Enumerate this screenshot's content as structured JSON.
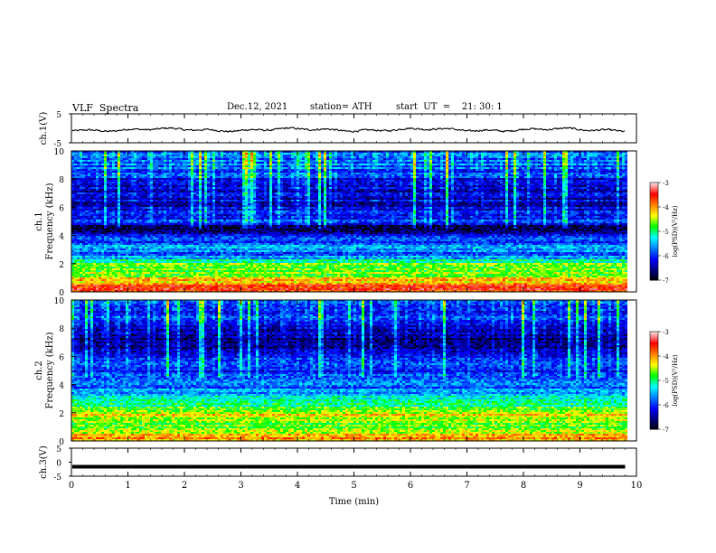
{
  "header": {
    "title": "VLF  Spectra",
    "date": "Dec.12, 2021",
    "station": "station= ATH",
    "start": "start  UT  =    21: 30: 1"
  },
  "chart_data": {
    "type": "heatmap",
    "xlabel": "Time  (min)",
    "xlim": [
      0,
      10
    ],
    "x_ticks": [
      0,
      1,
      2,
      3,
      4,
      5,
      6,
      7,
      8,
      9,
      10
    ],
    "data_end_min": 9.8,
    "panels": [
      {
        "type": "line",
        "ylabel": "ch.1(V)",
        "ylim": [
          -5,
          5
        ],
        "y_ticks": [
          5,
          -5
        ],
        "mean_value": -0.5,
        "description_values_range": [
          -1.0,
          0.2
        ]
      },
      {
        "type": "heatmap",
        "channel_label": "ch.1",
        "ylabel": "Frequency  (kHz)",
        "ylim": [
          0,
          10
        ],
        "y_ticks": [
          0,
          2,
          4,
          6,
          8,
          10
        ],
        "colorbar": {
          "label": "log(PSD)(V²/Hz)",
          "range": [
            -7,
            -3
          ],
          "ticks": [
            -3,
            -4,
            -5,
            -6,
            -7
          ],
          "colors": [
            "#000000",
            "#00007f",
            "#0000ff",
            "#0080ff",
            "#00ffff",
            "#00ff00",
            "#ffff00",
            "#ff8000",
            "#ff0000",
            "#ffd8d8"
          ]
        },
        "band_levels_by_freq_kHz": [
          {
            "f": 0.3,
            "level": -3.5
          },
          {
            "f": 0.8,
            "level": -4.2
          },
          {
            "f": 1.3,
            "level": -4.6
          },
          {
            "f": 2.0,
            "level": -4.8
          },
          {
            "f": 2.6,
            "level": -5.8
          },
          {
            "f": 3.2,
            "level": -5.6
          },
          {
            "f": 3.9,
            "level": -6.1
          },
          {
            "f": 4.5,
            "level": -6.8
          },
          {
            "f": 5.0,
            "level": -6.0
          },
          {
            "f": 6.0,
            "level": -6.3
          },
          {
            "f": 7.5,
            "level": -6.3
          },
          {
            "f": 9.0,
            "level": -5.8
          }
        ]
      },
      {
        "type": "heatmap",
        "channel_label": "ch.2",
        "ylabel": "Frequency  (kHz)",
        "ylim": [
          0,
          10
        ],
        "y_ticks": [
          0,
          2,
          4,
          6,
          8,
          10
        ],
        "colorbar": {
          "label": "log(PSD)(V²/Hz)",
          "range": [
            -7,
            -3
          ],
          "ticks": [
            -3,
            -4,
            -5,
            -6,
            -7
          ],
          "colors": [
            "#000000",
            "#00007f",
            "#0000ff",
            "#0080ff",
            "#00ffff",
            "#00ff00",
            "#ffff00",
            "#ff8000",
            "#ff0000",
            "#ffd8d8"
          ]
        },
        "band_levels_by_freq_kHz": [
          {
            "f": 0.3,
            "level": -4.0
          },
          {
            "f": 1.0,
            "level": -4.6
          },
          {
            "f": 1.9,
            "level": -4.3
          },
          {
            "f": 2.8,
            "level": -5.2
          },
          {
            "f": 3.5,
            "level": -5.6
          },
          {
            "f": 4.5,
            "level": -6.0
          },
          {
            "f": 5.5,
            "level": -6.0
          },
          {
            "f": 7.0,
            "level": -6.6
          },
          {
            "f": 9.0,
            "level": -6.0
          }
        ]
      },
      {
        "type": "line",
        "ylabel": "ch.3(V)",
        "ylim": [
          -5,
          5
        ],
        "y_ticks": [
          5,
          0,
          -5
        ],
        "mean_value": -1.6
      }
    ]
  }
}
